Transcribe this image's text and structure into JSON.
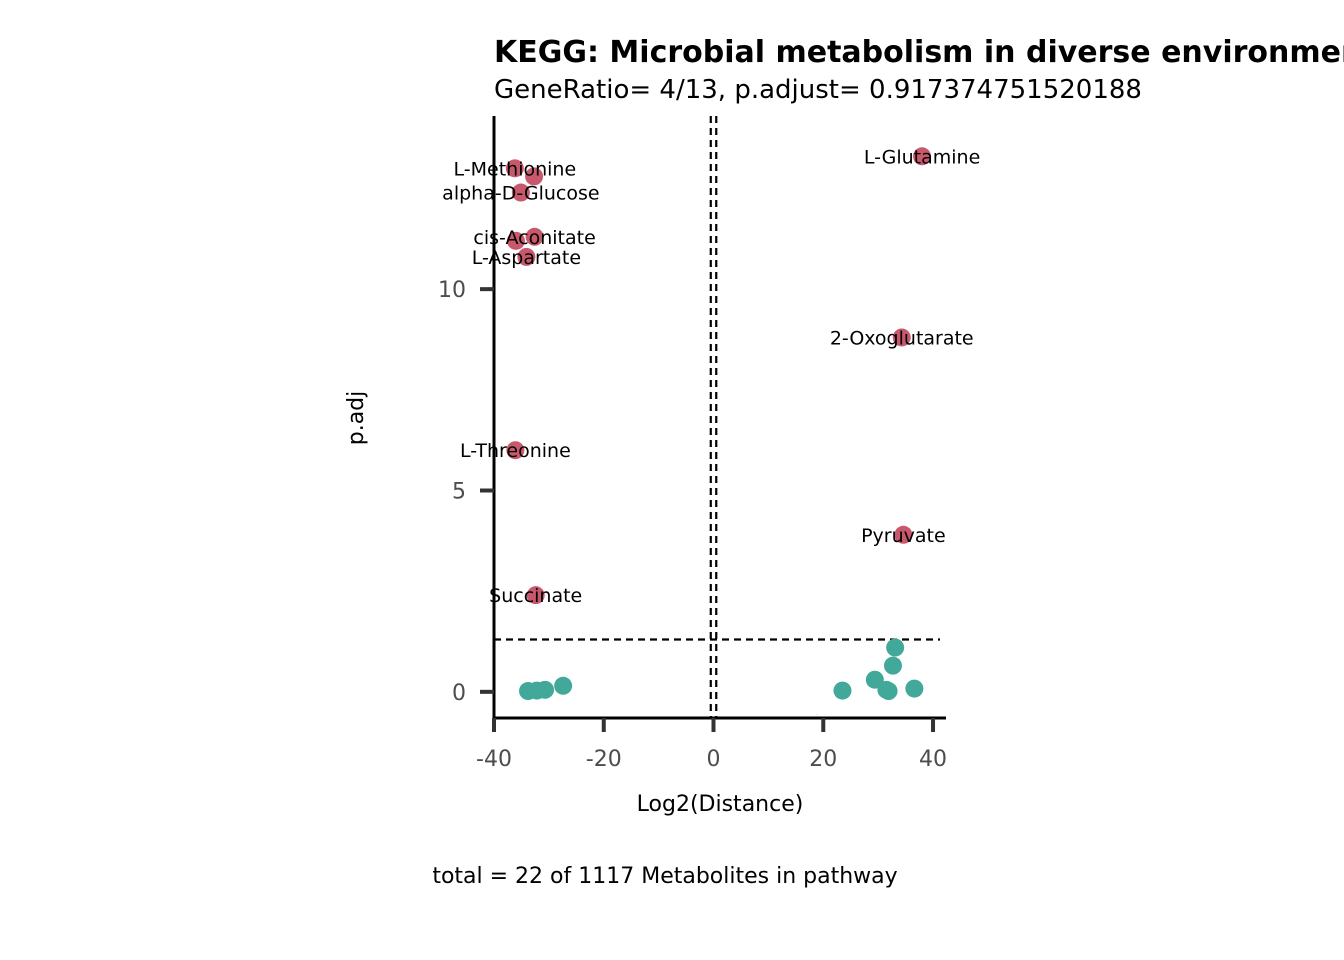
{
  "chart_data": {
    "type": "scatter",
    "title": "KEGG: Microbial metabolism in diverse environments",
    "subtitle": "GeneRatio= 4/13, p.adjust= 0.917374751520188",
    "xlabel": "Log2(Distance)",
    "ylabel": "p.adj",
    "caption": "total = 22 of 1117 Metabolites in pathway",
    "xlim": [
      -40,
      42
    ],
    "ylim": [
      -0.65,
      14.3
    ],
    "x_ticks": [
      -40,
      -20,
      0,
      20,
      40
    ],
    "y_ticks": [
      0,
      5,
      10
    ],
    "vlines": [
      -0.5,
      0.5
    ],
    "hline": 1.3,
    "grid": false,
    "colors": {
      "significant": "#C8596C",
      "not_significant": "#42A99A"
    },
    "series": [
      {
        "name": "significant",
        "points": [
          {
            "x": 38.0,
            "y": 13.3,
            "label": "L-Glutamine"
          },
          {
            "x": -36.2,
            "y": 13.0,
            "label": "L-Methionine"
          },
          {
            "x": -32.7,
            "y": 12.8,
            "label": ""
          },
          {
            "x": -35.1,
            "y": 12.4,
            "label": "alpha-D-Glucose"
          },
          {
            "x": -32.6,
            "y": 11.3,
            "label": "cis-Aconitate"
          },
          {
            "x": -36.0,
            "y": 11.2,
            "label": ""
          },
          {
            "x": -34.1,
            "y": 10.8,
            "label": "L-Aspartate"
          },
          {
            "x": 34.3,
            "y": 8.8,
            "label": "2-Oxoglutarate"
          },
          {
            "x": -36.1,
            "y": 6.0,
            "label": "L-Threonine"
          },
          {
            "x": 34.6,
            "y": 3.9,
            "label": "Pyruvate"
          },
          {
            "x": -32.4,
            "y": 2.4,
            "label": "Succinate"
          }
        ]
      },
      {
        "name": "not_significant",
        "points": [
          {
            "x": -33.8,
            "y": 0.02
          },
          {
            "x": -32.2,
            "y": 0.03
          },
          {
            "x": -30.7,
            "y": 0.05
          },
          {
            "x": -27.4,
            "y": 0.15
          },
          {
            "x": 23.5,
            "y": 0.03
          },
          {
            "x": 29.4,
            "y": 0.3
          },
          {
            "x": 31.5,
            "y": 0.05
          },
          {
            "x": 31.9,
            "y": 0.02
          },
          {
            "x": 32.7,
            "y": 0.65
          },
          {
            "x": 33.1,
            "y": 1.1
          },
          {
            "x": 36.6,
            "y": 0.08
          }
        ]
      }
    ]
  }
}
